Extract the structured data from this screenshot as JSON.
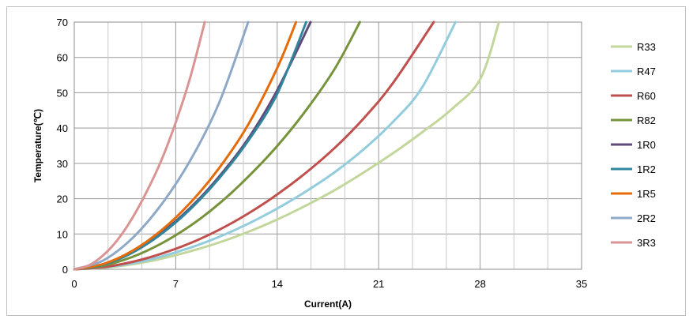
{
  "chart_data": {
    "type": "line",
    "xlabel": "Current(A)",
    "ylabel": "Temperature(℃)",
    "xlim": [
      0,
      35
    ],
    "ylim": [
      0,
      70
    ],
    "xticks": [
      0,
      7,
      14,
      21,
      28,
      35
    ],
    "yticks": [
      0,
      10,
      20,
      30,
      40,
      50,
      60,
      70
    ],
    "grid": true,
    "legend": "right",
    "series": [
      {
        "name": "R33",
        "color": "#c3d69b",
        "x": [
          0,
          2,
          4,
          6,
          8,
          10,
          12,
          14,
          16,
          18,
          20,
          22,
          24,
          26,
          28,
          29.3
        ],
        "y": [
          0,
          0.4,
          1.4,
          3.0,
          5.1,
          7.6,
          10.6,
          14.1,
          18.1,
          22.5,
          27.5,
          32.9,
          38.8,
          45.2,
          53.8,
          70
        ]
      },
      {
        "name": "R47",
        "color": "#93cddd",
        "x": [
          0,
          2,
          4,
          6,
          8,
          10,
          12,
          14,
          16,
          18,
          20,
          22,
          24,
          26.3
        ],
        "y": [
          0,
          0.5,
          1.7,
          3.6,
          6.1,
          9.2,
          12.9,
          17.2,
          22.1,
          27.6,
          34.1,
          41.8,
          51.5,
          70
        ]
      },
      {
        "name": "R60",
        "color": "#c0504d",
        "x": [
          0,
          2,
          4,
          6,
          8,
          10,
          12,
          14,
          16,
          18,
          20,
          22,
          24.8
        ],
        "y": [
          0,
          0.6,
          2.1,
          4.4,
          7.4,
          11.2,
          15.8,
          21.2,
          27.4,
          34.5,
          42.9,
          52.8,
          70
        ]
      },
      {
        "name": "R82",
        "color": "#77933c",
        "x": [
          0,
          2,
          4,
          6,
          8,
          10,
          12,
          14,
          16,
          18,
          19.7
        ],
        "y": [
          0,
          1.0,
          3.5,
          7.3,
          12.3,
          18.6,
          26.2,
          34.9,
          45.1,
          57.0,
          70
        ]
      },
      {
        "name": "1R0",
        "color": "#604a7b",
        "x": [
          0,
          2,
          4,
          6,
          8,
          10,
          12,
          14,
          16.3
        ],
        "y": [
          0,
          1.4,
          4.9,
          10.3,
          17.4,
          26.3,
          37.0,
          50.7,
          70
        ]
      },
      {
        "name": "1R2",
        "color": "#31859c",
        "x": [
          0,
          2,
          4,
          6,
          8,
          10,
          12,
          14,
          16.0
        ],
        "y": [
          0,
          1.3,
          4.7,
          10.0,
          17.0,
          25.8,
          36.4,
          49.7,
          70
        ]
      },
      {
        "name": "1R5",
        "color": "#e46c0a",
        "x": [
          0,
          2,
          4,
          6,
          8,
          10,
          12,
          14,
          15.3
        ],
        "y": [
          0,
          1.5,
          5.2,
          11.0,
          18.8,
          28.7,
          41.0,
          57.0,
          70
        ]
      },
      {
        "name": "2R2",
        "color": "#8ea9c8",
        "x": [
          0,
          2,
          4,
          6,
          8,
          10,
          12.0
        ],
        "y": [
          0,
          2.5,
          8.8,
          18.3,
          30.8,
          47.2,
          70
        ]
      },
      {
        "name": "3R3",
        "color": "#d99594",
        "x": [
          0,
          1,
          2,
          3,
          4,
          5,
          6,
          7,
          8,
          9.0
        ],
        "y": [
          0,
          1.1,
          4.0,
          8.4,
          14.5,
          22.0,
          30.8,
          41.6,
          54.3,
          70
        ]
      }
    ]
  }
}
